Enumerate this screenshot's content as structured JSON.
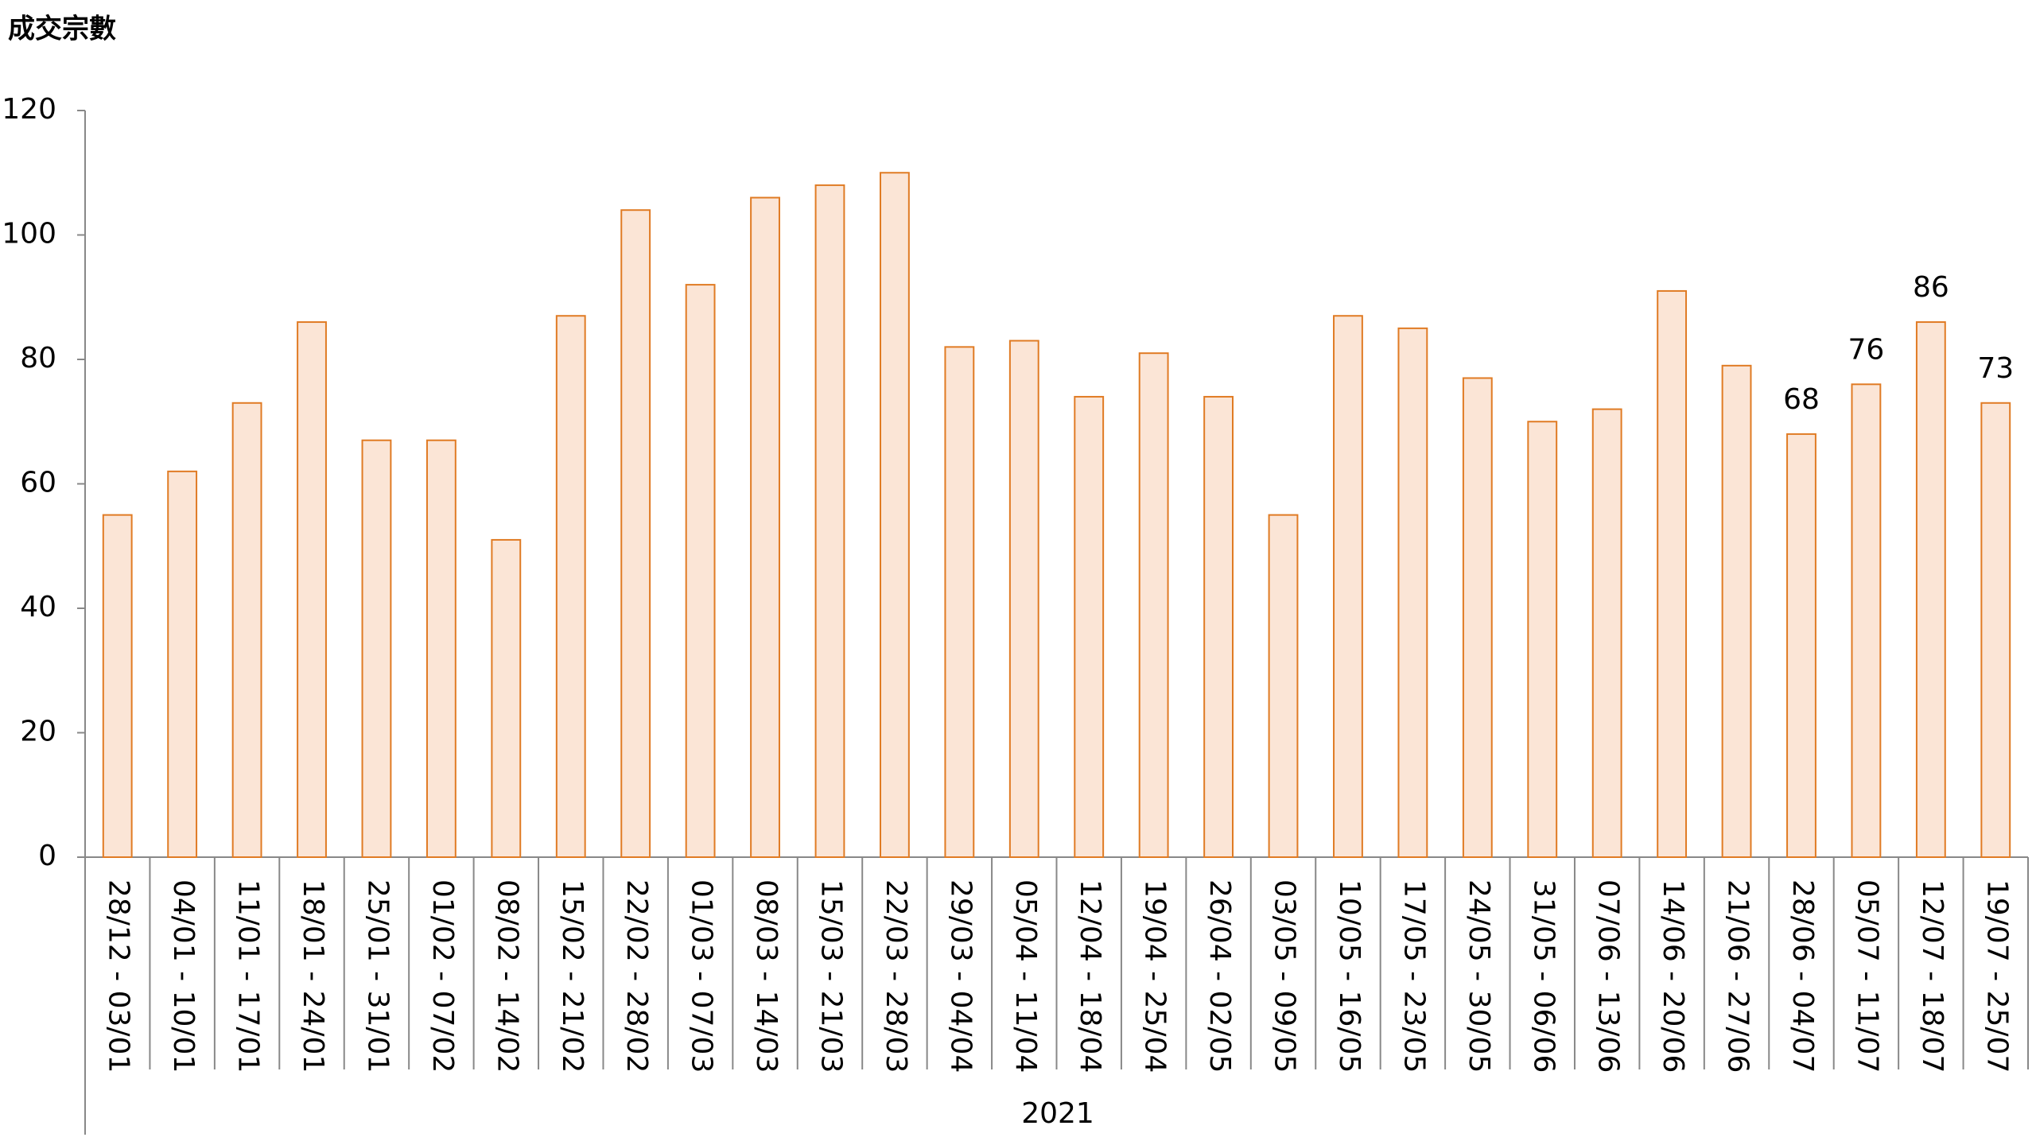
{
  "chart_data": {
    "type": "bar",
    "y_label": "成交宗數",
    "group_label": "2021",
    "categories": [
      "28/12 - 03/01",
      "04/01 - 10/01",
      "11/01 - 17/01",
      "18/01 - 24/01",
      "25/01 - 31/01",
      "01/02 - 07/02",
      "08/02 - 14/02",
      "15/02 - 21/02",
      "22/02 - 28/02",
      "01/03 - 07/03",
      "08/03 - 14/03",
      "15/03 - 21/03",
      "22/03 - 28/03",
      "29/03 - 04/04",
      "05/04 - 11/04",
      "12/04 - 18/04",
      "19/04 - 25/04",
      "26/04 - 02/05",
      "03/05 - 09/05",
      "10/05 - 16/05",
      "17/05 - 23/05",
      "24/05 - 30/05",
      "31/05 - 06/06",
      "07/06 - 13/06",
      "14/06 - 20/06",
      "21/06 - 27/06",
      "28/06 - 04/07",
      "05/07 - 11/07",
      "12/07 - 18/07",
      "19/07 - 25/07"
    ],
    "values": [
      55,
      62,
      73,
      86,
      67,
      67,
      51,
      87,
      104,
      92,
      106,
      108,
      110,
      82,
      83,
      74,
      81,
      74,
      55,
      87,
      85,
      77,
      70,
      72,
      91,
      79,
      68,
      76,
      86,
      73
    ],
    "value_labels": [
      null,
      null,
      null,
      null,
      null,
      null,
      null,
      null,
      null,
      null,
      null,
      null,
      null,
      null,
      null,
      null,
      null,
      null,
      null,
      null,
      null,
      null,
      null,
      null,
      null,
      null,
      "68",
      "76",
      "86",
      "73"
    ],
    "color": "#fbe5d6",
    "edge_color": "#e07b24",
    "ylim": [
      0,
      120
    ],
    "yticks": [
      0,
      20,
      40,
      60,
      80,
      100,
      120
    ],
    "grid": false
  }
}
